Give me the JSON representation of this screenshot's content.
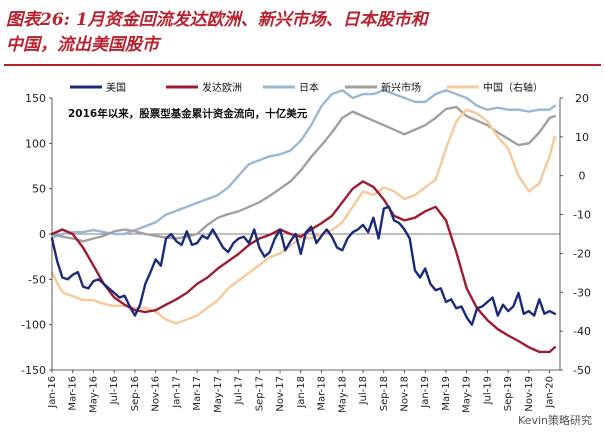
{
  "figure": {
    "title_line1": "图表26: 1月资金回流发达欧洲、新兴市场、日本股市和",
    "title_line2": "中国，流出美国股市",
    "annotation": "2016年以来，股票型基金累计资金流向，十亿美元",
    "watermark": "Kevin策略研究",
    "colors": {
      "title": "#b8222e",
      "usa": "#1c2a7a",
      "dev_europe": "#9e1b32",
      "japan": "#9ab8d6",
      "em": "#a0a0a0",
      "china": "#f6c89a"
    }
  },
  "chart_data": {
    "type": "line",
    "x_tick_labels": [
      "Jan-16",
      "Mar-16",
      "May-16",
      "Jul-16",
      "Sep-16",
      "Nov-16",
      "Jan-17",
      "Mar-17",
      "May-17",
      "Jul-17",
      "Sep-17",
      "Nov-17",
      "Jan-18",
      "Mar-18",
      "May-18",
      "Jul-18",
      "Sep-18",
      "Nov-18",
      "Jan-19",
      "Mar-19",
      "May-19",
      "Jul-19",
      "Sep-19",
      "Nov-19",
      "Jan-20"
    ],
    "y_left": {
      "range": [
        -150,
        150
      ],
      "ticks": [
        "-150",
        "-100",
        "-50",
        "0",
        "50",
        "100",
        "150"
      ]
    },
    "y_right": {
      "range": [
        -50,
        20
      ],
      "ticks": [
        "-50",
        "-40",
        "-30",
        "-20",
        "-10",
        "0",
        "10",
        "20"
      ]
    },
    "legend": {
      "placement": "top"
    },
    "series": [
      {
        "name": "美国",
        "key": "usa",
        "axis": "left",
        "x": [
          0,
          0.5,
          1,
          1.5,
          2,
          2.5,
          3,
          3.5,
          4,
          4.5,
          5,
          5.5,
          6,
          6.5,
          7,
          7.5,
          8,
          8.5,
          9,
          9.5,
          10,
          10.5,
          11,
          11.5,
          12,
          12.5,
          13,
          13.5,
          14,
          14.5,
          15,
          15.5,
          16,
          16.5,
          17,
          17.5,
          18,
          18.5,
          19,
          19.5,
          20,
          20.5,
          21,
          21.5,
          22,
          22.5,
          23,
          23.5,
          24,
          24.5,
          25,
          25.5,
          26,
          26.5,
          27,
          27.5,
          28,
          28.5,
          29,
          29.5,
          30,
          30.5,
          31,
          31.5,
          32,
          32.5,
          33,
          33.5,
          34,
          34.5,
          35,
          35.5,
          36,
          36.5,
          37,
          37.5,
          38,
          38.5,
          39,
          39.5,
          40,
          40.5,
          41,
          41.5,
          42,
          42.5,
          43,
          43.5,
          44,
          44.5,
          45,
          45.5,
          46,
          46.5,
          47,
          47.5,
          48,
          48.5
        ],
        "values": [
          -5,
          -30,
          -48,
          -50,
          -45,
          -42,
          -58,
          -60,
          -52,
          -50,
          -55,
          -60,
          -65,
          -70,
          -68,
          -80,
          -90,
          -78,
          -55,
          -42,
          -28,
          -35,
          -5,
          0,
          -8,
          -12,
          3,
          -12,
          -10,
          -2,
          -5,
          5,
          -5,
          -15,
          -20,
          -10,
          -5,
          -3,
          -10,
          5,
          -15,
          -25,
          -20,
          -5,
          5,
          -18,
          -8,
          0,
          -22,
          2,
          8,
          -10,
          -2,
          5,
          -3,
          -15,
          -18,
          -5,
          2,
          5,
          10,
          2,
          18,
          -5,
          28,
          30,
          15,
          12,
          5,
          -5,
          -40,
          -48,
          -38,
          -55,
          -62,
          -60,
          -75,
          -72,
          -82,
          -80,
          -92,
          -100,
          -82,
          -80,
          -75,
          -70,
          -90,
          -78,
          -85,
          -80,
          -65,
          -88,
          -85,
          -90,
          -72,
          -88,
          -85,
          -88
        ]
      },
      {
        "name": "发达欧洲",
        "key": "dev_europe",
        "axis": "left",
        "x": [
          0,
          1,
          2,
          3,
          4,
          5,
          6,
          7,
          8,
          9,
          10,
          11,
          12,
          13,
          14,
          15,
          16,
          17,
          18,
          19,
          20,
          21,
          22,
          23,
          24,
          25,
          26,
          27,
          28,
          29,
          30,
          31,
          32,
          33,
          34,
          35,
          36,
          37,
          38,
          39,
          40,
          41,
          42,
          43,
          44,
          45,
          46,
          47,
          48,
          48.5
        ],
        "values": [
          0,
          5,
          0,
          -15,
          -35,
          -55,
          -70,
          -78,
          -84,
          -86,
          -84,
          -78,
          -72,
          -65,
          -55,
          -48,
          -38,
          -30,
          -22,
          -12,
          -5,
          -1,
          5,
          0,
          -3,
          5,
          12,
          20,
          35,
          50,
          58,
          52,
          38,
          20,
          15,
          18,
          25,
          30,
          15,
          -20,
          -60,
          -82,
          -95,
          -105,
          -112,
          -118,
          -125,
          -130,
          -130,
          -125
        ]
      },
      {
        "name": "日本",
        "key": "japan",
        "axis": "right",
        "x": [
          0,
          1,
          2,
          3,
          4,
          5,
          6,
          7,
          8,
          9,
          10,
          11,
          12,
          13,
          14,
          15,
          16,
          17,
          18,
          19,
          20,
          21,
          22,
          23,
          24,
          25,
          26,
          27,
          28,
          29,
          30,
          31,
          32,
          33,
          34,
          35,
          36,
          37,
          38,
          39,
          40,
          41,
          42,
          43,
          44,
          45,
          46,
          47,
          48,
          48.5
        ],
        "values": [
          -16,
          -15,
          -14.5,
          -14.5,
          -14,
          -14.5,
          -15,
          -15,
          -14,
          -13,
          -12,
          -10,
          -9,
          -8,
          -7,
          -6,
          -5,
          -3,
          0,
          3,
          4,
          5,
          5.5,
          6.5,
          9,
          13,
          18,
          21,
          22,
          20,
          21,
          21,
          22,
          21,
          20,
          19,
          19,
          21,
          22,
          21,
          20,
          18,
          17,
          17.5,
          17,
          17,
          16.5,
          17,
          17,
          18
        ]
      },
      {
        "name": "新兴市场",
        "key": "em",
        "axis": "left",
        "x": [
          0,
          1,
          2,
          3,
          4,
          5,
          6,
          7,
          8,
          9,
          10,
          11,
          12,
          13,
          14,
          15,
          16,
          17,
          18,
          19,
          20,
          21,
          22,
          23,
          24,
          25,
          26,
          27,
          28,
          29,
          30,
          31,
          32,
          33,
          34,
          35,
          36,
          37,
          38,
          39,
          40,
          41,
          42,
          43,
          44,
          45,
          46,
          47,
          48,
          48.5
        ],
        "values": [
          0,
          -3,
          -5,
          -8,
          -5,
          -2,
          3,
          5,
          3,
          0,
          -2,
          -4,
          -5,
          -3,
          0,
          10,
          18,
          22,
          25,
          30,
          35,
          42,
          50,
          58,
          70,
          85,
          98,
          112,
          128,
          135,
          130,
          125,
          120,
          115,
          110,
          115,
          120,
          128,
          138,
          140,
          130,
          125,
          120,
          112,
          105,
          98,
          100,
          112,
          128,
          130
        ]
      },
      {
        "name": "中国（右轴）",
        "key": "china",
        "axis": "right",
        "x": [
          0,
          1,
          2,
          3,
          4,
          5,
          6,
          7,
          8,
          9,
          10,
          11,
          12,
          13,
          14,
          15,
          16,
          17,
          18,
          19,
          20,
          21,
          22,
          23,
          24,
          25,
          26,
          27,
          28,
          29,
          30,
          31,
          32,
          33,
          34,
          35,
          36,
          37,
          38,
          39,
          40,
          41,
          42,
          43,
          44,
          45,
          46,
          47,
          48,
          48.5
        ],
        "values": [
          -25,
          -30,
          -31,
          -32,
          -32,
          -33,
          -33.5,
          -33.5,
          -34,
          -34,
          -35,
          -37,
          -38,
          -37,
          -36,
          -34,
          -32,
          -29,
          -27,
          -25,
          -23,
          -21,
          -20,
          -18,
          -16,
          -16,
          -15,
          -14,
          -12,
          -8,
          -4,
          -5,
          -3,
          -4,
          -6,
          -5,
          -3,
          -1,
          7,
          14,
          17,
          16,
          14,
          10,
          7,
          0,
          -4,
          -2,
          5,
          10
        ]
      }
    ]
  }
}
